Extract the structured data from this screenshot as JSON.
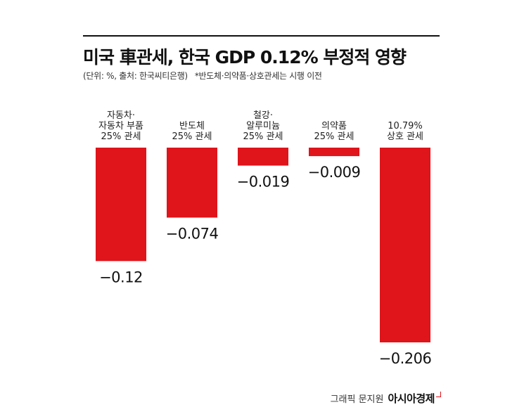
{
  "header": {
    "title": "미국 車관세, 한국 GDP 0.12% 부정적 영향",
    "source": "(단위: %, 출처: 한국씨티은행)",
    "note": "*반도체·의약품·상호관세는 시행 이전"
  },
  "chart_data": {
    "type": "bar",
    "categories": [
      [
        "자동차·",
        "자동차 부품",
        "25% 관세"
      ],
      [
        "반도체",
        "25% 관세"
      ],
      [
        "철강·",
        "알루미늄",
        "25% 관세"
      ],
      [
        "의약품",
        "25% 관세"
      ],
      [
        "10.79%",
        "상호 관세"
      ]
    ],
    "values": [
      -0.12,
      -0.074,
      -0.019,
      -0.009,
      -0.206
    ],
    "value_labels": [
      "−0.12",
      "−0.074",
      "−0.019",
      "−0.009",
      "−0.206"
    ],
    "ylim": [
      -0.206,
      0
    ],
    "bar_color": "#e0141b",
    "grid": false,
    "legend": "none"
  },
  "credit": {
    "text": "그래픽 문지원",
    "brand": "아시아경제"
  }
}
